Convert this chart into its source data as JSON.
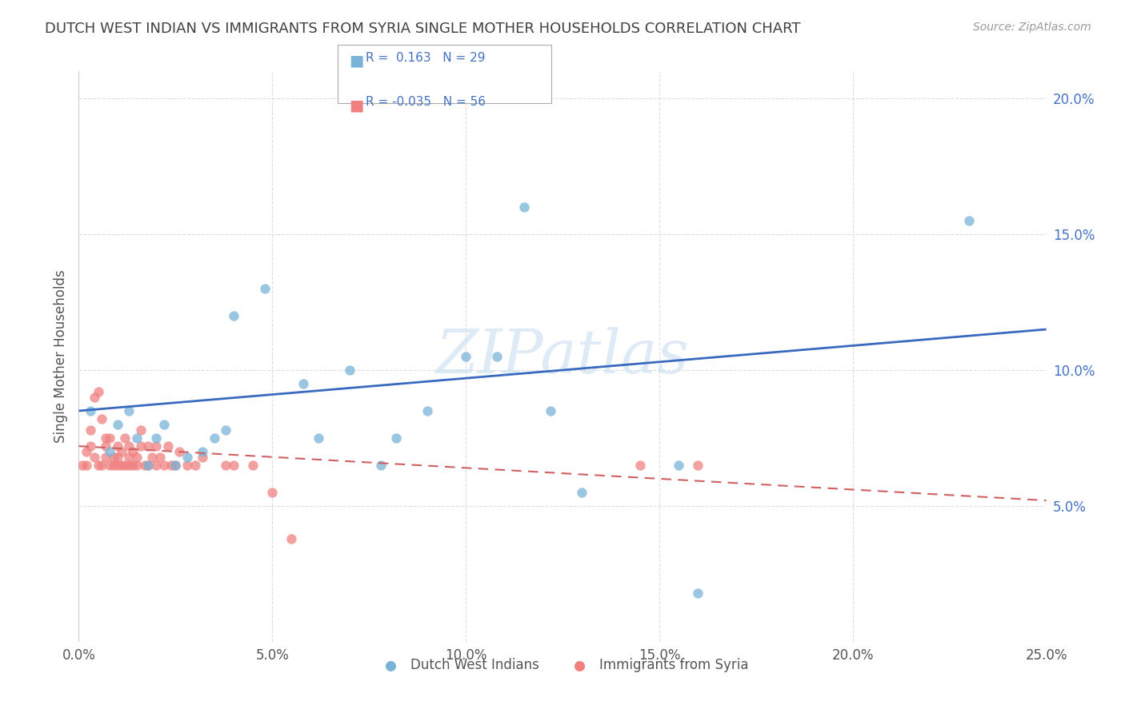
{
  "title": "DUTCH WEST INDIAN VS IMMIGRANTS FROM SYRIA SINGLE MOTHER HOUSEHOLDS CORRELATION CHART",
  "source": "Source: ZipAtlas.com",
  "ylabel": "Single Mother Households",
  "watermark": "ZIPatlas",
  "xlim": [
    0.0,
    0.25
  ],
  "ylim": [
    0.0,
    0.21
  ],
  "xticks": [
    0.0,
    0.05,
    0.1,
    0.15,
    0.2,
    0.25
  ],
  "yticks": [
    0.05,
    0.1,
    0.15,
    0.2
  ],
  "xtick_labels": [
    "0.0%",
    "5.0%",
    "10.0%",
    "15.0%",
    "20.0%",
    "25.0%"
  ],
  "ytick_labels": [
    "5.0%",
    "10.0%",
    "15.0%",
    "20.0%"
  ],
  "series1_color": "#7ab3d8",
  "series2_color": "#f08080",
  "series1_label": "Dutch West Indians",
  "series2_label": "Immigrants from Syria",
  "legend_R1": "R =  0.163",
  "legend_N1": "N = 29",
  "legend_R2": "R = -0.035",
  "legend_N2": "N = 56",
  "line1_color": "#3a6abf",
  "line2_color": "#d06060",
  "background_color": "#ffffff",
  "grid_color": "#dddddd",
  "title_color": "#404040",
  "axis_color": "#4472c4",
  "series1_x": [
    0.003,
    0.008,
    0.01,
    0.013,
    0.015,
    0.018,
    0.02,
    0.022,
    0.025,
    0.028,
    0.032,
    0.035,
    0.038,
    0.04,
    0.048,
    0.058,
    0.062,
    0.07,
    0.078,
    0.082,
    0.09,
    0.1,
    0.108,
    0.115,
    0.122,
    0.13,
    0.155,
    0.16,
    0.23
  ],
  "series1_y": [
    0.085,
    0.07,
    0.08,
    0.085,
    0.075,
    0.065,
    0.075,
    0.08,
    0.065,
    0.068,
    0.07,
    0.075,
    0.078,
    0.12,
    0.13,
    0.095,
    0.075,
    0.1,
    0.065,
    0.075,
    0.085,
    0.105,
    0.105,
    0.16,
    0.085,
    0.055,
    0.065,
    0.018,
    0.155
  ],
  "series2_x": [
    0.001,
    0.002,
    0.002,
    0.003,
    0.003,
    0.004,
    0.004,
    0.005,
    0.005,
    0.006,
    0.006,
    0.007,
    0.007,
    0.007,
    0.008,
    0.008,
    0.009,
    0.009,
    0.01,
    0.01,
    0.01,
    0.011,
    0.011,
    0.012,
    0.012,
    0.013,
    0.013,
    0.013,
    0.014,
    0.014,
    0.015,
    0.015,
    0.016,
    0.016,
    0.017,
    0.018,
    0.018,
    0.019,
    0.02,
    0.02,
    0.021,
    0.022,
    0.023,
    0.024,
    0.025,
    0.026,
    0.028,
    0.03,
    0.032,
    0.038,
    0.04,
    0.045,
    0.05,
    0.055,
    0.145,
    0.16
  ],
  "series2_y": [
    0.065,
    0.065,
    0.07,
    0.072,
    0.078,
    0.068,
    0.09,
    0.065,
    0.092,
    0.065,
    0.082,
    0.068,
    0.072,
    0.075,
    0.065,
    0.075,
    0.068,
    0.065,
    0.065,
    0.068,
    0.072,
    0.065,
    0.07,
    0.065,
    0.075,
    0.065,
    0.068,
    0.072,
    0.065,
    0.07,
    0.065,
    0.068,
    0.072,
    0.078,
    0.065,
    0.065,
    0.072,
    0.068,
    0.065,
    0.072,
    0.068,
    0.065,
    0.072,
    0.065,
    0.065,
    0.07,
    0.065,
    0.065,
    0.068,
    0.065,
    0.065,
    0.065,
    0.055,
    0.038,
    0.065,
    0.065
  ],
  "line1_x0": 0.0,
  "line1_y0": 0.085,
  "line1_x1": 0.25,
  "line1_y1": 0.115,
  "line2_x0": 0.0,
  "line2_y0": 0.072,
  "line2_x1": 0.25,
  "line2_y1": 0.052
}
